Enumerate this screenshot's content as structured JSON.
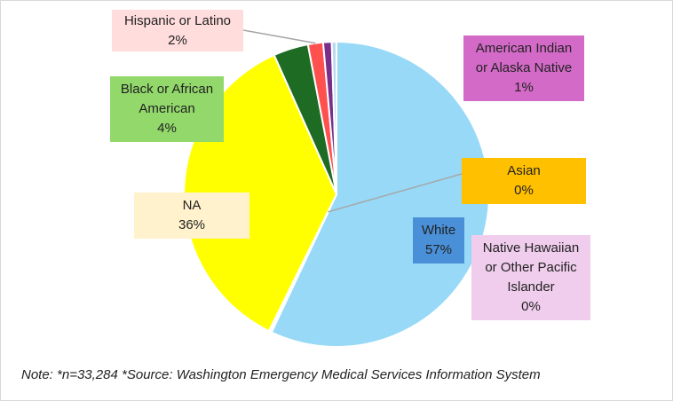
{
  "chart_data": {
    "type": "pie",
    "title": "",
    "slices": [
      {
        "key": "white",
        "label": "White",
        "value": 57,
        "display": "57%",
        "color": "#97D9F7",
        "label_bg": "#4A90D9"
      },
      {
        "key": "native-hawaiian",
        "label": "Native Hawaiian or Other Pacific Islander",
        "value": 0.1,
        "display": "0%",
        "color": "#F0CDED",
        "label_bg": "#F0CDED"
      },
      {
        "key": "asian",
        "label": "Asian",
        "value": 0.2,
        "display": "0%",
        "color": "#FFC000",
        "label_bg": "#FFC000"
      },
      {
        "key": "na",
        "label": "NA",
        "value": 36,
        "display": "36%",
        "color": "#FFFF00",
        "label_bg": "#FFF2CC"
      },
      {
        "key": "black",
        "label": "Black or African American",
        "value": 3.7,
        "display": "4%",
        "color": "#1E6B24",
        "label_bg": "#92D86B"
      },
      {
        "key": "hispanic",
        "label": "Hispanic or Latino",
        "value": 1.6,
        "display": "2%",
        "color": "#FF5050",
        "label_bg": "#FFDDDD"
      },
      {
        "key": "american-indian",
        "label": "American Indian or Alaska Native",
        "value": 0.9,
        "display": "1%",
        "color": "#7A2E8A",
        "label_bg": "#D46AC8"
      },
      {
        "key": "other-light",
        "label": "",
        "value": 0.5,
        "display": "",
        "color": "#BBD9EE",
        "label_bg": "#ffffff"
      }
    ],
    "labels": {
      "hispanic": [
        "Hispanic or Latino",
        "2%"
      ],
      "american-indian": [
        "American Indian",
        "or Alaska Native",
        "1%"
      ],
      "black": [
        "Black or African",
        "American",
        "4%"
      ],
      "asian": [
        "Asian",
        "0%"
      ],
      "na": [
        "NA",
        "36%"
      ],
      "white": [
        "White",
        "57%"
      ],
      "native-hawaiian": [
        "Native Hawaiian",
        "or Other Pacific",
        "Islander",
        "0%"
      ]
    }
  },
  "note": "Note: *n=33,284  *Source: Washington Emergency Medical Services Information System"
}
